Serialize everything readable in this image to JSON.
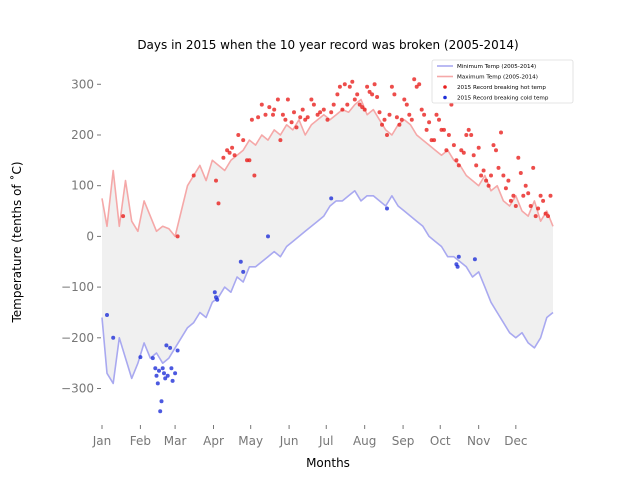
{
  "chart_data": {
    "type": "line",
    "title": "Days in 2015 when the 10 year record was broken (2005-2014)",
    "xlabel": "Months",
    "ylabel": "Temperature (tenths of ˚C)",
    "xlim": [
      1,
      365
    ],
    "ylim": [
      -370,
      340
    ],
    "x_ticks": [
      {
        "day": 1,
        "label": "Jan"
      },
      {
        "day": 32,
        "label": "Feb"
      },
      {
        "day": 60,
        "label": "Mar"
      },
      {
        "day": 91,
        "label": "Apr"
      },
      {
        "day": 121,
        "label": "May"
      },
      {
        "day": 152,
        "label": "Jun"
      },
      {
        "day": 182,
        "label": "Jul"
      },
      {
        "day": 213,
        "label": "Aug"
      },
      {
        "day": 244,
        "label": "Sep"
      },
      {
        "day": 274,
        "label": "Oct"
      },
      {
        "day": 305,
        "label": "Nov"
      },
      {
        "day": 335,
        "label": "Dec"
      }
    ],
    "y_ticks": [
      -300,
      -200,
      -100,
      0,
      100,
      200,
      300
    ],
    "y_tick_labels": [
      "−300",
      "−200",
      "−100",
      "0",
      "100",
      "200",
      "300"
    ],
    "grid": false,
    "legend_position": "top-right",
    "fill_between": {
      "color": "#f0f0f0"
    },
    "series": [
      {
        "name": "Minimum Temp (2005-2014)",
        "kind": "line",
        "color": "#a9a9f0",
        "x": [
          1,
          5,
          10,
          15,
          20,
          25,
          30,
          35,
          40,
          45,
          50,
          55,
          60,
          65,
          70,
          75,
          80,
          85,
          90,
          95,
          100,
          105,
          110,
          115,
          120,
          125,
          130,
          135,
          140,
          145,
          150,
          155,
          160,
          165,
          170,
          175,
          180,
          185,
          190,
          195,
          200,
          205,
          210,
          215,
          220,
          225,
          230,
          235,
          240,
          245,
          250,
          255,
          260,
          265,
          270,
          275,
          280,
          285,
          290,
          295,
          300,
          305,
          310,
          315,
          320,
          325,
          330,
          335,
          340,
          345,
          350,
          355,
          360,
          365
        ],
        "y": [
          -160,
          -270,
          -290,
          -200,
          -240,
          -280,
          -250,
          -210,
          -240,
          -230,
          -250,
          -240,
          -220,
          -200,
          -180,
          -170,
          -150,
          -160,
          -130,
          -120,
          -100,
          -110,
          -80,
          -90,
          -60,
          -60,
          -50,
          -40,
          -30,
          -40,
          -20,
          -10,
          0,
          10,
          20,
          30,
          40,
          60,
          70,
          70,
          80,
          90,
          70,
          80,
          80,
          70,
          60,
          80,
          60,
          50,
          40,
          30,
          20,
          0,
          -10,
          -20,
          -40,
          -40,
          -50,
          -60,
          -80,
          -70,
          -100,
          -130,
          -150,
          -170,
          -190,
          -200,
          -190,
          -210,
          -220,
          -200,
          -160,
          -150
        ]
      },
      {
        "name": "Maximum Temp (2005-2014)",
        "kind": "line",
        "color": "#f5a8a8",
        "x": [
          1,
          5,
          10,
          15,
          20,
          25,
          30,
          35,
          40,
          45,
          50,
          55,
          60,
          65,
          70,
          75,
          80,
          85,
          90,
          95,
          100,
          105,
          110,
          115,
          120,
          125,
          130,
          135,
          140,
          145,
          150,
          155,
          160,
          165,
          170,
          175,
          180,
          185,
          190,
          195,
          200,
          205,
          210,
          215,
          220,
          225,
          230,
          235,
          240,
          245,
          250,
          255,
          260,
          265,
          270,
          275,
          280,
          285,
          290,
          295,
          300,
          305,
          310,
          315,
          320,
          325,
          330,
          335,
          340,
          345,
          350,
          355,
          360,
          365
        ],
        "y": [
          75,
          20,
          130,
          20,
          110,
          30,
          10,
          70,
          40,
          10,
          20,
          15,
          0,
          50,
          100,
          120,
          140,
          110,
          150,
          140,
          130,
          150,
          160,
          170,
          190,
          180,
          200,
          190,
          210,
          200,
          220,
          210,
          230,
          200,
          220,
          230,
          240,
          230,
          240,
          250,
          245,
          260,
          270,
          240,
          250,
          230,
          210,
          200,
          220,
          230,
          220,
          200,
          190,
          180,
          170,
          160,
          170,
          150,
          140,
          120,
          110,
          100,
          120,
          90,
          100,
          70,
          60,
          80,
          50,
          40,
          70,
          30,
          50,
          20
        ]
      },
      {
        "name": "2015 Record breaking hot temp",
        "kind": "scatter",
        "color": "#e8201e",
        "x": [
          18,
          62,
          75,
          93,
          95,
          99,
          102,
          104,
          106,
          108,
          111,
          115,
          118,
          120,
          122,
          124,
          127,
          130,
          133,
          136,
          139,
          140,
          143,
          145,
          147,
          149,
          151,
          154,
          156,
          158,
          161,
          163,
          165,
          167,
          170,
          172,
          175,
          177,
          180,
          183,
          186,
          188,
          191,
          193,
          195,
          197,
          199,
          201,
          203,
          205,
          207,
          209,
          211,
          213,
          215,
          217,
          219,
          221,
          223,
          225,
          227,
          229,
          231,
          233,
          235,
          237,
          239,
          241,
          243,
          245,
          247,
          249,
          251,
          253,
          255,
          257,
          259,
          261,
          263,
          265,
          267,
          269,
          271,
          273,
          275,
          277,
          279,
          281,
          283,
          285,
          287,
          289,
          291,
          293,
          295,
          297,
          299,
          301,
          303,
          305,
          307,
          309,
          311,
          313,
          315,
          317,
          319,
          321,
          323,
          325,
          327,
          329,
          331,
          333,
          335,
          337,
          339,
          341,
          343,
          345,
          347,
          349,
          351,
          353,
          355,
          357,
          359,
          361,
          363
        ],
        "y": [
          40,
          0,
          120,
          110,
          65,
          155,
          170,
          165,
          175,
          160,
          200,
          190,
          150,
          150,
          230,
          120,
          235,
          260,
          240,
          255,
          240,
          250,
          270,
          190,
          240,
          230,
          270,
          225,
          245,
          215,
          235,
          250,
          230,
          235,
          270,
          260,
          240,
          245,
          250,
          230,
          245,
          260,
          280,
          295,
          250,
          300,
          260,
          295,
          305,
          270,
          280,
          260,
          255,
          250,
          295,
          285,
          280,
          300,
          275,
          245,
          220,
          230,
          200,
          240,
          295,
          280,
          235,
          220,
          230,
          270,
          260,
          240,
          230,
          310,
          295,
          300,
          250,
          240,
          210,
          225,
          190,
          190,
          240,
          230,
          210,
          210,
          170,
          200,
          260,
          180,
          150,
          140,
          170,
          165,
          200,
          210,
          200,
          160,
          140,
          175,
          120,
          130,
          110,
          100,
          120,
          180,
          170,
          135,
          205,
          120,
          95,
          110,
          70,
          80,
          60,
          155,
          125,
          80,
          100,
          85,
          60,
          135,
          40,
          55,
          80,
          70,
          45,
          40,
          80
        ]
      },
      {
        "name": "2015 Record breaking cold temp",
        "kind": "scatter",
        "color": "#1f2fd8",
        "x": [
          5,
          10,
          32,
          42,
          44,
          45,
          46,
          47,
          48,
          49,
          50,
          51,
          52,
          53,
          54,
          56,
          57,
          58,
          60,
          62,
          92,
          93,
          94,
          113,
          115,
          135,
          186,
          231,
          287,
          288,
          289,
          302
        ],
        "y": [
          -155,
          -200,
          -238,
          -240,
          -260,
          -275,
          -290,
          -265,
          -345,
          -325,
          -260,
          -270,
          -280,
          -215,
          -275,
          -220,
          -260,
          -285,
          -270,
          -225,
          -110,
          -120,
          -125,
          -50,
          -70,
          0,
          75,
          55,
          -55,
          -60,
          -40,
          -45
        ]
      }
    ]
  }
}
